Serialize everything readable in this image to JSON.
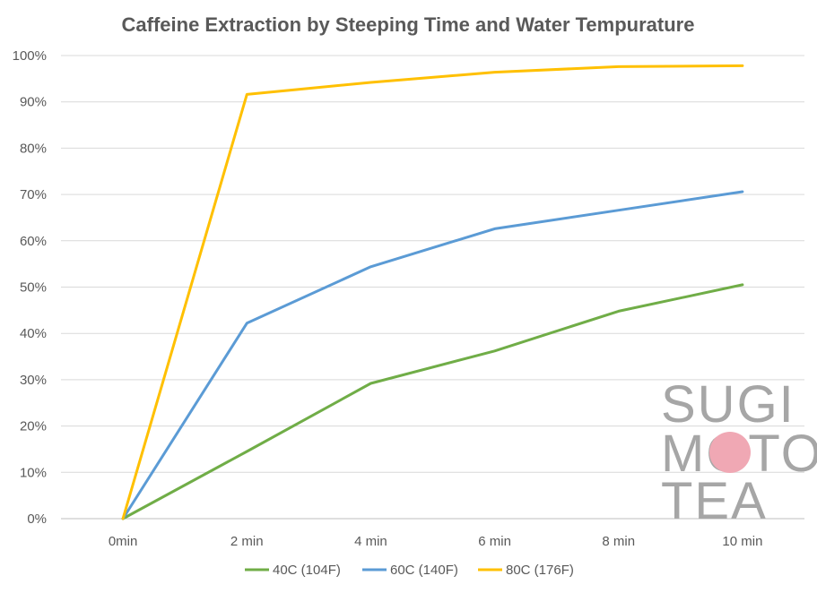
{
  "chart_data": {
    "type": "line",
    "title": "Caffeine Extraction by Steeping Time and Water Tempurature",
    "xlabel": "",
    "ylabel": "",
    "categories": [
      "0min",
      "2 min",
      "4 min",
      "6 min",
      "8 min",
      "10 min"
    ],
    "ylim": [
      0,
      100
    ],
    "yticks": [
      "0%",
      "10%",
      "20%",
      "30%",
      "40%",
      "50%",
      "60%",
      "70%",
      "80%",
      "90%",
      "100%"
    ],
    "grid": true,
    "legend_position": "bottom",
    "series": [
      {
        "name": "40C (104F)",
        "color": "#70ad47",
        "values": [
          0,
          14.5,
          29.2,
          36.2,
          44.8,
          50.5
        ]
      },
      {
        "name": "60C (140F)",
        "color": "#5b9bd5",
        "values": [
          0,
          42.2,
          54.4,
          62.6,
          66.6,
          70.6
        ]
      },
      {
        "name": "80C (176F)",
        "color": "#ffc000",
        "values": [
          0,
          91.6,
          94.2,
          96.4,
          97.6,
          97.8
        ]
      }
    ]
  },
  "watermark": {
    "lines": [
      "SUGI",
      "MOTO",
      "TEA"
    ],
    "text_color": "#a6a6a6",
    "dot_color": "#f0a8b4"
  }
}
